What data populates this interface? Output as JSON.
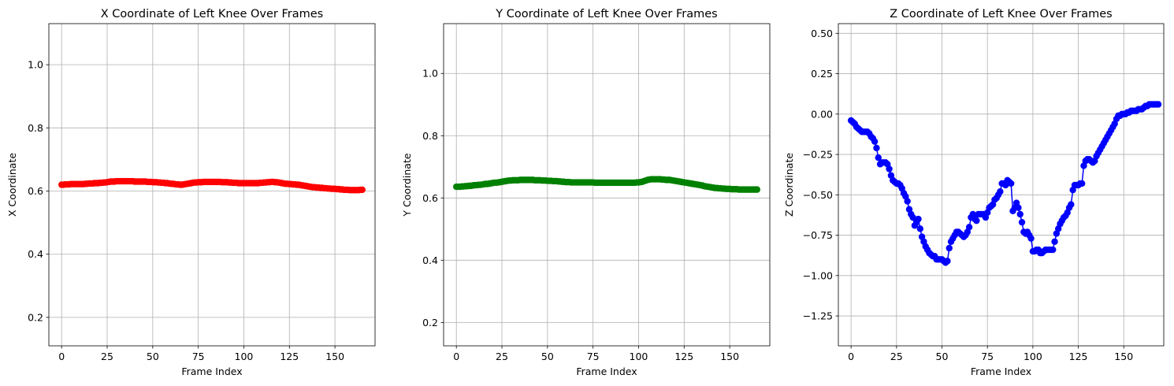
{
  "chart_data": [
    {
      "type": "line",
      "title": "X Coordinate of Left Knee Over Frames",
      "xlabel": "Frame Index",
      "ylabel": "X Coordinate",
      "xlim": [
        -7,
        172
      ],
      "ylim": [
        0.11,
        1.13
      ],
      "xticks": [
        0,
        25,
        50,
        75,
        100,
        125,
        150
      ],
      "yticks": [
        0.2,
        0.4,
        0.6,
        0.8,
        1.0
      ],
      "ytick_labels": [
        "0.2",
        "0.4",
        "0.6",
        "0.8",
        "1.0"
      ],
      "grid": true,
      "color": "#ff0000",
      "series": [
        {
          "x_start": 0,
          "x_step": 1,
          "values": [
            0.62,
            0.62,
            0.621,
            0.621,
            0.621,
            0.622,
            0.622,
            0.622,
            0.622,
            0.622,
            0.622,
            0.622,
            0.622,
            0.623,
            0.623,
            0.624,
            0.624,
            0.624,
            0.625,
            0.625,
            0.625,
            0.626,
            0.626,
            0.627,
            0.627,
            0.628,
            0.629,
            0.63,
            0.63,
            0.63,
            0.631,
            0.631,
            0.631,
            0.631,
            0.631,
            0.631,
            0.631,
            0.631,
            0.631,
            0.631,
            0.63,
            0.63,
            0.63,
            0.63,
            0.63,
            0.63,
            0.63,
            0.629,
            0.629,
            0.629,
            0.628,
            0.628,
            0.628,
            0.627,
            0.627,
            0.626,
            0.626,
            0.625,
            0.625,
            0.624,
            0.623,
            0.623,
            0.622,
            0.621,
            0.621,
            0.62,
            0.62,
            0.621,
            0.622,
            0.623,
            0.624,
            0.625,
            0.626,
            0.627,
            0.627,
            0.628,
            0.628,
            0.628,
            0.629,
            0.629,
            0.629,
            0.629,
            0.629,
            0.629,
            0.629,
            0.629,
            0.629,
            0.629,
            0.628,
            0.628,
            0.628,
            0.628,
            0.627,
            0.627,
            0.626,
            0.626,
            0.626,
            0.625,
            0.625,
            0.625,
            0.625,
            0.625,
            0.625,
            0.625,
            0.625,
            0.625,
            0.625,
            0.625,
            0.625,
            0.626,
            0.626,
            0.627,
            0.627,
            0.628,
            0.628,
            0.629,
            0.629,
            0.628,
            0.628,
            0.627,
            0.626,
            0.625,
            0.624,
            0.623,
            0.623,
            0.622,
            0.622,
            0.621,
            0.621,
            0.62,
            0.62,
            0.619,
            0.618,
            0.617,
            0.616,
            0.615,
            0.614,
            0.613,
            0.612,
            0.612,
            0.611,
            0.611,
            0.61,
            0.61,
            0.609,
            0.609,
            0.608,
            0.608,
            0.607,
            0.607,
            0.607,
            0.606,
            0.606,
            0.605,
            0.605,
            0.604,
            0.604,
            0.604,
            0.603,
            0.603,
            0.603,
            0.603,
            0.603,
            0.603,
            0.604,
            0.604
          ]
        }
      ]
    },
    {
      "type": "line",
      "title": "Y Coordinate of Left Knee Over Frames",
      "xlabel": "Frame Index",
      "ylabel": "Y Coordinate",
      "xlim": [
        -7,
        172
      ],
      "ylim": [
        0.125,
        1.16
      ],
      "xticks": [
        0,
        25,
        50,
        75,
        100,
        125,
        150
      ],
      "yticks": [
        0.2,
        0.4,
        0.6,
        0.8,
        1.0
      ],
      "ytick_labels": [
        "0.2",
        "0.4",
        "0.6",
        "0.8",
        "1.0"
      ],
      "grid": true,
      "color": "#008000",
      "series": [
        {
          "x_start": 0,
          "x_step": 1,
          "values": [
            0.636,
            0.636,
            0.636,
            0.637,
            0.637,
            0.638,
            0.638,
            0.639,
            0.639,
            0.64,
            0.641,
            0.641,
            0.642,
            0.642,
            0.643,
            0.644,
            0.645,
            0.645,
            0.646,
            0.647,
            0.648,
            0.649,
            0.649,
            0.65,
            0.651,
            0.652,
            0.653,
            0.654,
            0.655,
            0.656,
            0.656,
            0.657,
            0.657,
            0.657,
            0.657,
            0.658,
            0.658,
            0.658,
            0.658,
            0.658,
            0.658,
            0.658,
            0.658,
            0.657,
            0.657,
            0.657,
            0.657,
            0.656,
            0.656,
            0.656,
            0.655,
            0.655,
            0.655,
            0.654,
            0.654,
            0.654,
            0.653,
            0.653,
            0.652,
            0.652,
            0.651,
            0.651,
            0.651,
            0.65,
            0.65,
            0.65,
            0.65,
            0.65,
            0.65,
            0.65,
            0.65,
            0.65,
            0.65,
            0.65,
            0.65,
            0.65,
            0.649,
            0.649,
            0.649,
            0.649,
            0.649,
            0.649,
            0.649,
            0.649,
            0.649,
            0.649,
            0.649,
            0.649,
            0.649,
            0.649,
            0.649,
            0.649,
            0.649,
            0.649,
            0.649,
            0.649,
            0.649,
            0.649,
            0.649,
            0.65,
            0.65,
            0.651,
            0.652,
            0.654,
            0.656,
            0.658,
            0.659,
            0.66,
            0.66,
            0.66,
            0.66,
            0.66,
            0.66,
            0.659,
            0.659,
            0.658,
            0.658,
            0.658,
            0.657,
            0.656,
            0.655,
            0.654,
            0.653,
            0.652,
            0.651,
            0.65,
            0.649,
            0.648,
            0.647,
            0.646,
            0.645,
            0.644,
            0.643,
            0.642,
            0.641,
            0.64,
            0.638,
            0.637,
            0.636,
            0.635,
            0.634,
            0.633,
            0.632,
            0.632,
            0.631,
            0.631,
            0.63,
            0.63,
            0.629,
            0.629,
            0.629,
            0.628,
            0.628,
            0.628,
            0.628,
            0.627,
            0.627,
            0.627,
            0.627,
            0.627,
            0.627,
            0.627,
            0.627,
            0.627,
            0.627,
            0.627
          ]
        }
      ]
    },
    {
      "type": "line",
      "title": "Z Coordinate of Left Knee Over Frames",
      "xlabel": "Frame Index",
      "ylabel": "Z Coordinate",
      "xlim": [
        -7,
        172
      ],
      "ylim": [
        -1.435,
        0.56
      ],
      "xticks": [
        0,
        25,
        50,
        75,
        100,
        125,
        150
      ],
      "yticks": [
        -1.25,
        -1.0,
        -0.75,
        -0.5,
        -0.25,
        0.0,
        0.25,
        0.5
      ],
      "ytick_labels": [
        "−1.25",
        "−1.00",
        "−0.75",
        "−0.50",
        "−0.25",
        "0.00",
        "0.25",
        "0.50"
      ],
      "grid": true,
      "color": "#0000ff",
      "series": [
        {
          "x_start": 0,
          "x_step": 1,
          "values": [
            -0.04,
            -0.05,
            -0.06,
            -0.08,
            -0.09,
            -0.1,
            -0.11,
            -0.11,
            -0.11,
            -0.11,
            -0.12,
            -0.14,
            -0.15,
            -0.17,
            -0.21,
            -0.27,
            -0.31,
            -0.3,
            -0.3,
            -0.3,
            -0.31,
            -0.34,
            -0.38,
            -0.41,
            -0.42,
            -0.43,
            -0.43,
            -0.44,
            -0.46,
            -0.49,
            -0.51,
            -0.54,
            -0.59,
            -0.62,
            -0.64,
            -0.69,
            -0.67,
            -0.65,
            -0.71,
            -0.76,
            -0.79,
            -0.82,
            -0.84,
            -0.86,
            -0.87,
            -0.88,
            -0.88,
            -0.9,
            -0.9,
            -0.9,
            -0.9,
            -0.91,
            -0.92,
            -0.91,
            -0.83,
            -0.79,
            -0.77,
            -0.75,
            -0.73,
            -0.73,
            -0.74,
            -0.75,
            -0.76,
            -0.75,
            -0.73,
            -0.7,
            -0.64,
            -0.62,
            -0.65,
            -0.66,
            -0.62,
            -0.62,
            -0.62,
            -0.62,
            -0.64,
            -0.61,
            -0.58,
            -0.57,
            -0.56,
            -0.53,
            -0.52,
            -0.5,
            -0.48,
            -0.43,
            -0.43,
            -0.44,
            -0.41,
            -0.42,
            -0.43,
            -0.6,
            -0.58,
            -0.55,
            -0.58,
            -0.62,
            -0.67,
            -0.73,
            -0.74,
            -0.73,
            -0.75,
            -0.77,
            -0.85,
            -0.85,
            -0.84,
            -0.84,
            -0.86,
            -0.86,
            -0.85,
            -0.84,
            -0.84,
            -0.84,
            -0.84,
            -0.84,
            -0.79,
            -0.74,
            -0.71,
            -0.68,
            -0.66,
            -0.64,
            -0.63,
            -0.61,
            -0.58,
            -0.56,
            -0.47,
            -0.44,
            -0.44,
            -0.44,
            -0.43,
            -0.43,
            -0.32,
            -0.29,
            -0.28,
            -0.28,
            -0.29,
            -0.3,
            -0.29,
            -0.26,
            -0.24,
            -0.22,
            -0.2,
            -0.18,
            -0.16,
            -0.14,
            -0.12,
            -0.1,
            -0.08,
            -0.06,
            -0.03,
            -0.01,
            -0.01,
            0.0,
            0.0,
            0.0,
            0.01,
            0.01,
            0.02,
            0.02,
            0.02,
            0.02,
            0.03,
            0.03,
            0.03,
            0.04,
            0.05,
            0.05,
            0.06,
            0.06,
            0.06,
            0.06,
            0.06,
            0.06
          ]
        }
      ]
    }
  ]
}
